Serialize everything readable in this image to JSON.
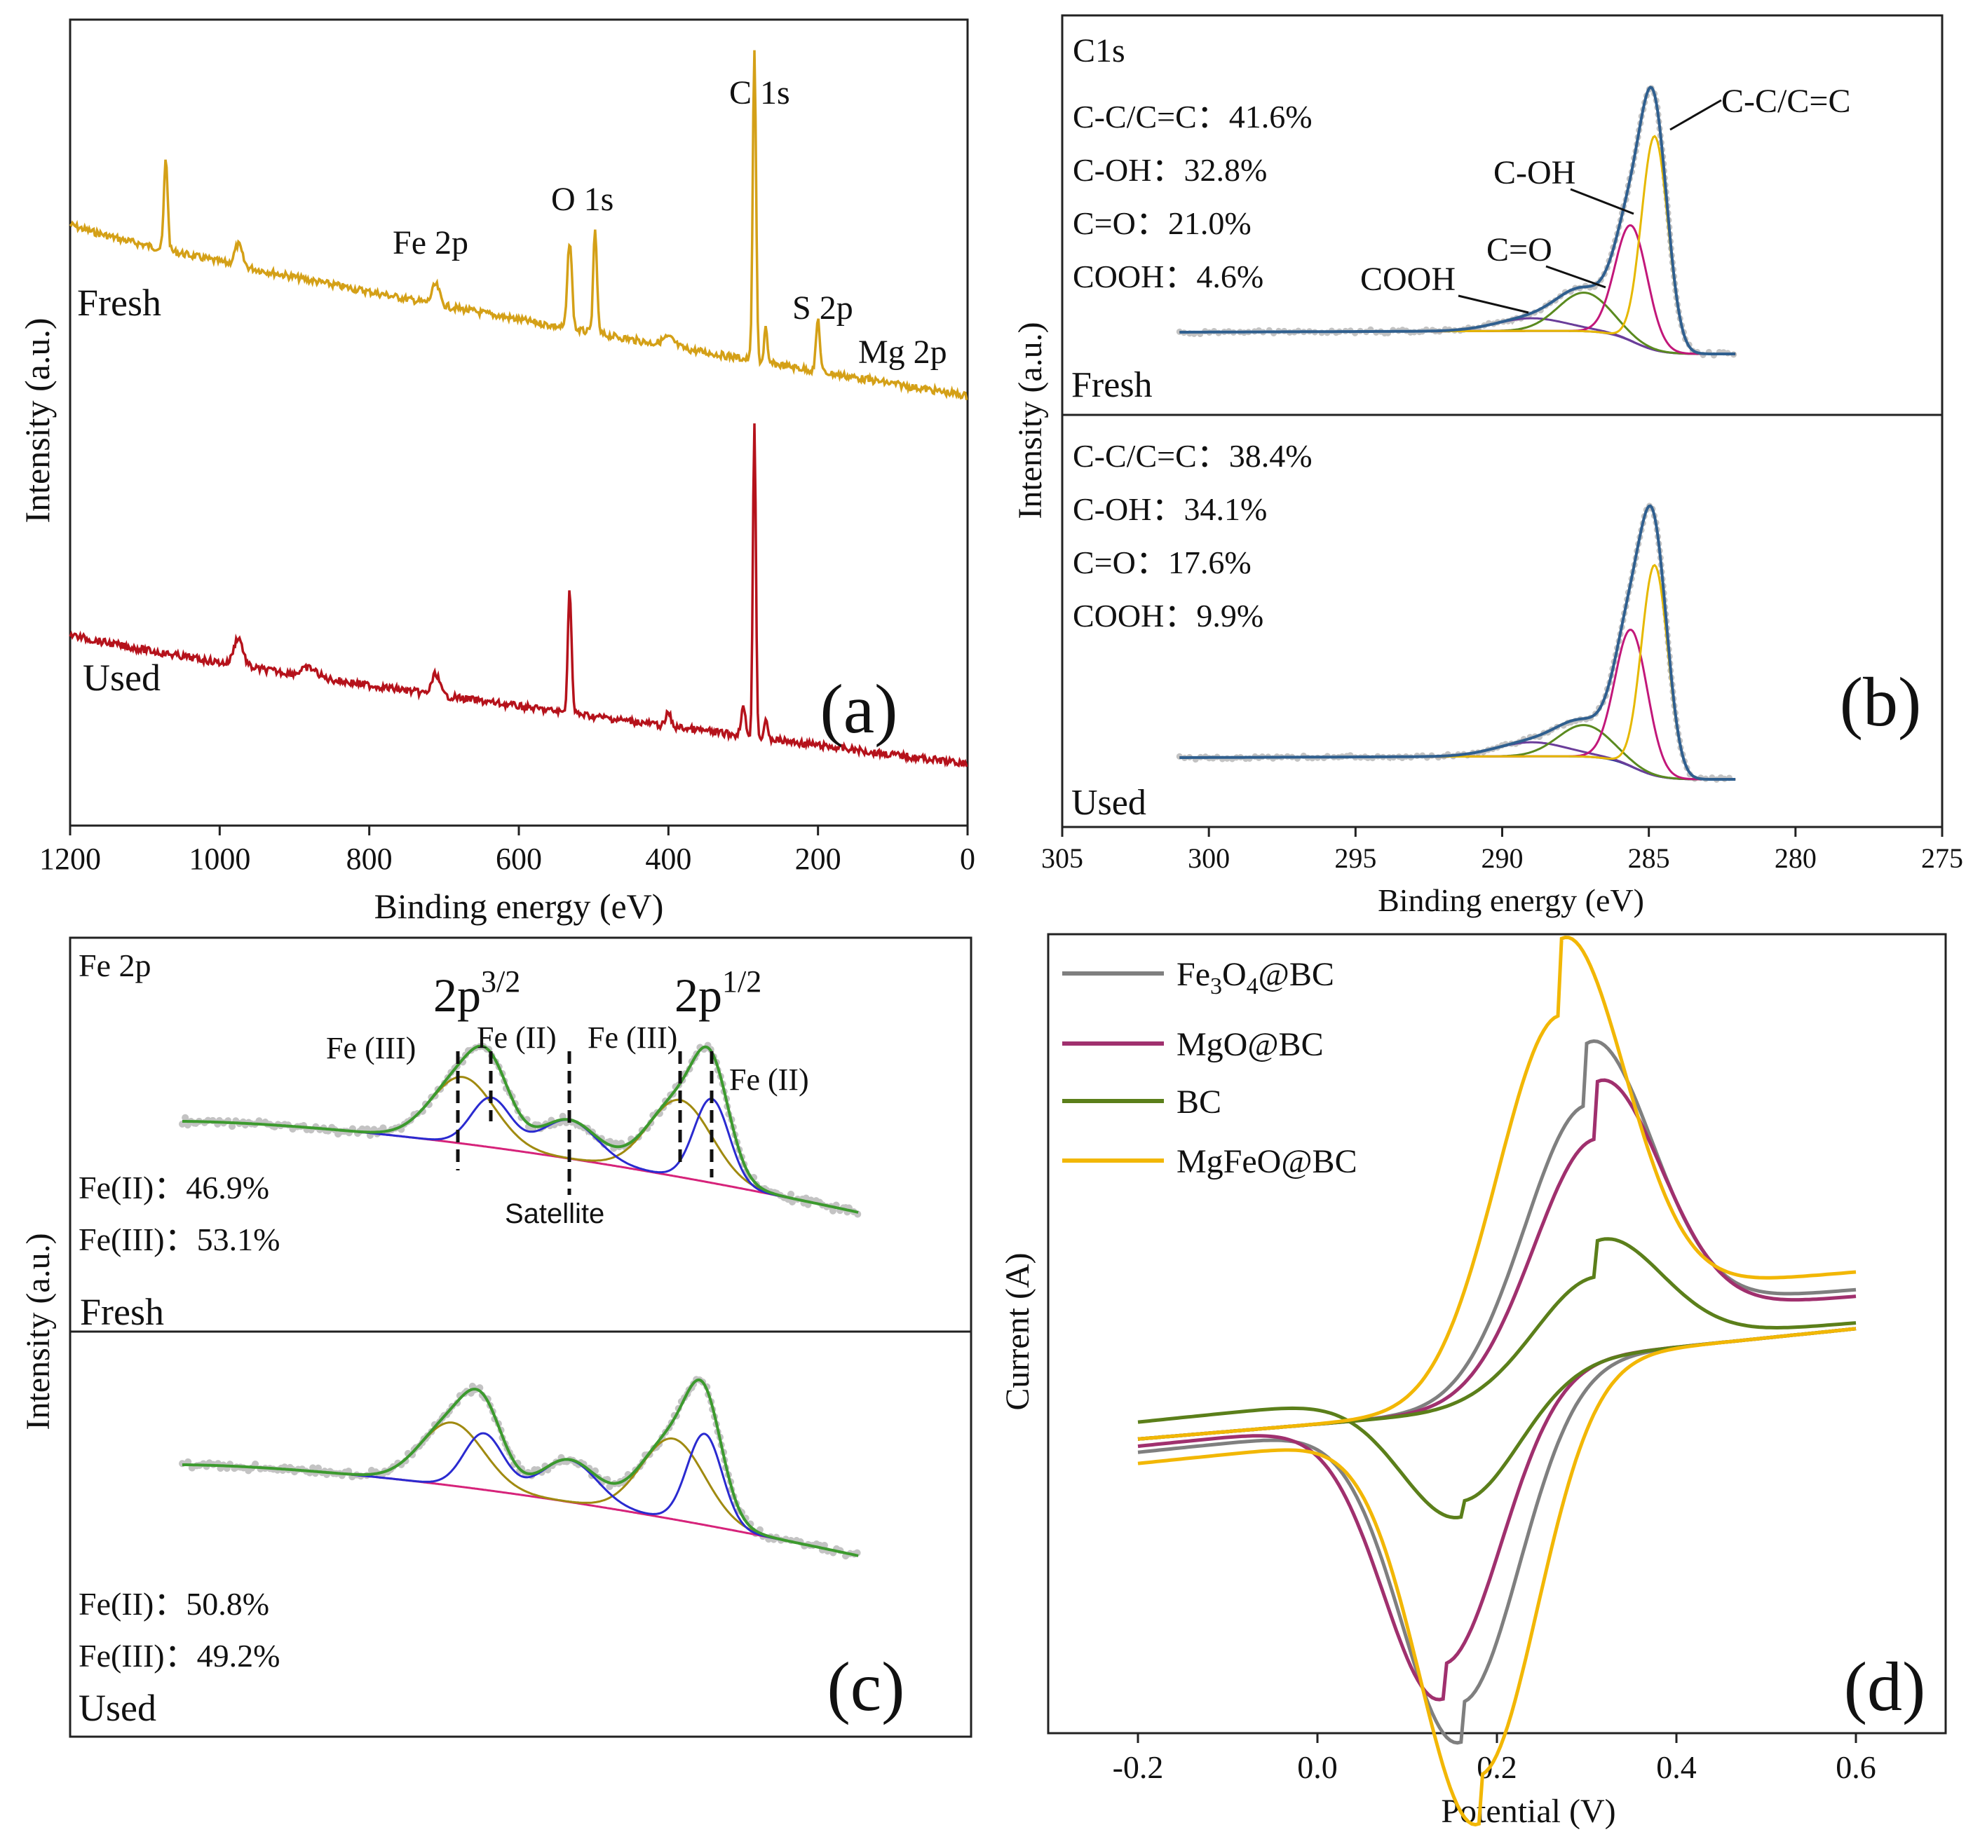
{
  "colors": {
    "gold": "#D4A017",
    "red": "#B5121B",
    "steel": "#2F5F8F",
    "magenta": "#C2177A",
    "yellowfit": "#E6B800",
    "green": "#5A8A1F",
    "purple": "#6A3D9A",
    "navy": "#1F2F8F",
    "gray": "#B9B9B9",
    "pink": "#D6237A",
    "olive": "#A08A10",
    "blue": "#2A2AD0",
    "fitgreen": "#3C9A2E",
    "cv_fe3o4": "#7F7F7F",
    "cv_mgo": "#A0306E",
    "cv_bc": "#5B7F1A",
    "cv_mgfeo": "#F2B705"
  },
  "chart_data": [
    {
      "panel": "a",
      "type": "line",
      "panel_label": "(a)",
      "xlabel": "Binding energy (eV)",
      "ylabel": "Intensity (a.u.)",
      "xlim": [
        1200,
        0
      ],
      "x_ticks": [
        1200,
        1000,
        800,
        600,
        400,
        200,
        0
      ],
      "series": [
        {
          "name": "Fresh",
          "peaks": [
            {
              "label": "Fe 2p",
              "x": 711
            },
            {
              "label": "O 1s",
              "x": 532
            },
            {
              "label": "C 1s",
              "x": 285
            },
            {
              "label": "S 2p",
              "x": 200
            },
            {
              "label": "Mg 2p",
              "x": 50
            }
          ]
        },
        {
          "name": "Used"
        }
      ]
    },
    {
      "panel": "b",
      "type": "line",
      "panel_label": "(b)",
      "xlabel": "Binding energy (eV)",
      "ylabel": "Intensity (a.u.)",
      "xlim": [
        305,
        275
      ],
      "x_ticks": [
        305,
        300,
        295,
        290,
        285,
        280,
        275
      ],
      "fresh": {
        "title": "C1s",
        "name": "Fresh",
        "composition": [
          "C-C/C=C：41.6%",
          "C-OH：32.8%",
          "C=O：21.0%",
          "COOH：4.6%"
        ],
        "components": [
          {
            "label": "C-C/C=C",
            "center": 284.8
          },
          {
            "label": "C-OH",
            "center": 285.6
          },
          {
            "label": "C=O",
            "center": 287.2
          },
          {
            "label": "COOH",
            "center": 289.0
          }
        ]
      },
      "used": {
        "name": "Used",
        "composition": [
          "C-C/C=C：38.4%",
          "C-OH：34.1%",
          "C=O：17.6%",
          "COOH：9.9%"
        ]
      }
    },
    {
      "panel": "c",
      "type": "line",
      "panel_label": "(c)",
      "ylabel": "Intensity (a.u.)",
      "fresh": {
        "title": "Fe 2p",
        "name": "Fresh",
        "composition": [
          "Fe(II)：46.9%",
          "Fe(III)：53.1%"
        ],
        "labels": {
          "p32": "2p",
          "p32_sup": "3/2",
          "p12": "2p",
          "p12_sup": "1/2",
          "fe3_a": "Fe (III)",
          "fe2_a": "Fe (II)",
          "fe3_b": "Fe (III)",
          "fe2_b": "Fe (II)",
          "satellite": "Satellite"
        }
      },
      "used": {
        "name": "Used",
        "composition": [
          "Fe(II)：50.8%",
          "Fe(III)：49.2%"
        ]
      }
    },
    {
      "panel": "d",
      "type": "line",
      "panel_label": "(d)",
      "xlabel": "Potential (V)",
      "ylabel": "Current (A)",
      "xlim": [
        -0.3,
        0.7
      ],
      "x_ticks": [
        -0.2,
        0.0,
        0.2,
        0.4,
        0.6
      ],
      "x_tick_labels": [
        "-0.2",
        "0.0",
        "0.2",
        "0.4",
        "0.6"
      ],
      "series": [
        {
          "name": "Fe3O4@BC",
          "legend_main": "Fe",
          "legend_sub1": "3",
          "legend_mid": "O",
          "legend_sub2": "4",
          "legend_tail": "@BC",
          "color_key": "cv_fe3o4",
          "Epa": 0.3,
          "Epc": 0.16,
          "Ipa": 4.2,
          "Ipc": -5.8
        },
        {
          "name": "MgO@BC",
          "legend": "MgO@BC",
          "color_key": "cv_mgo",
          "Epa": 0.31,
          "Epc": 0.14,
          "Ipa": 3.6,
          "Ipc": -5.1
        },
        {
          "name": "BC",
          "legend": "BC",
          "color_key": "cv_bc",
          "Epa": 0.31,
          "Epc": 0.16,
          "Ipa": 1.2,
          "Ipc": -2.3
        },
        {
          "name": "MgFeO@BC",
          "legend": "MgFeO@BC",
          "color_key": "cv_mgfeo",
          "Epa": 0.27,
          "Epc": 0.18,
          "Ipa": 5.8,
          "Ipc": -7.1
        }
      ]
    }
  ]
}
